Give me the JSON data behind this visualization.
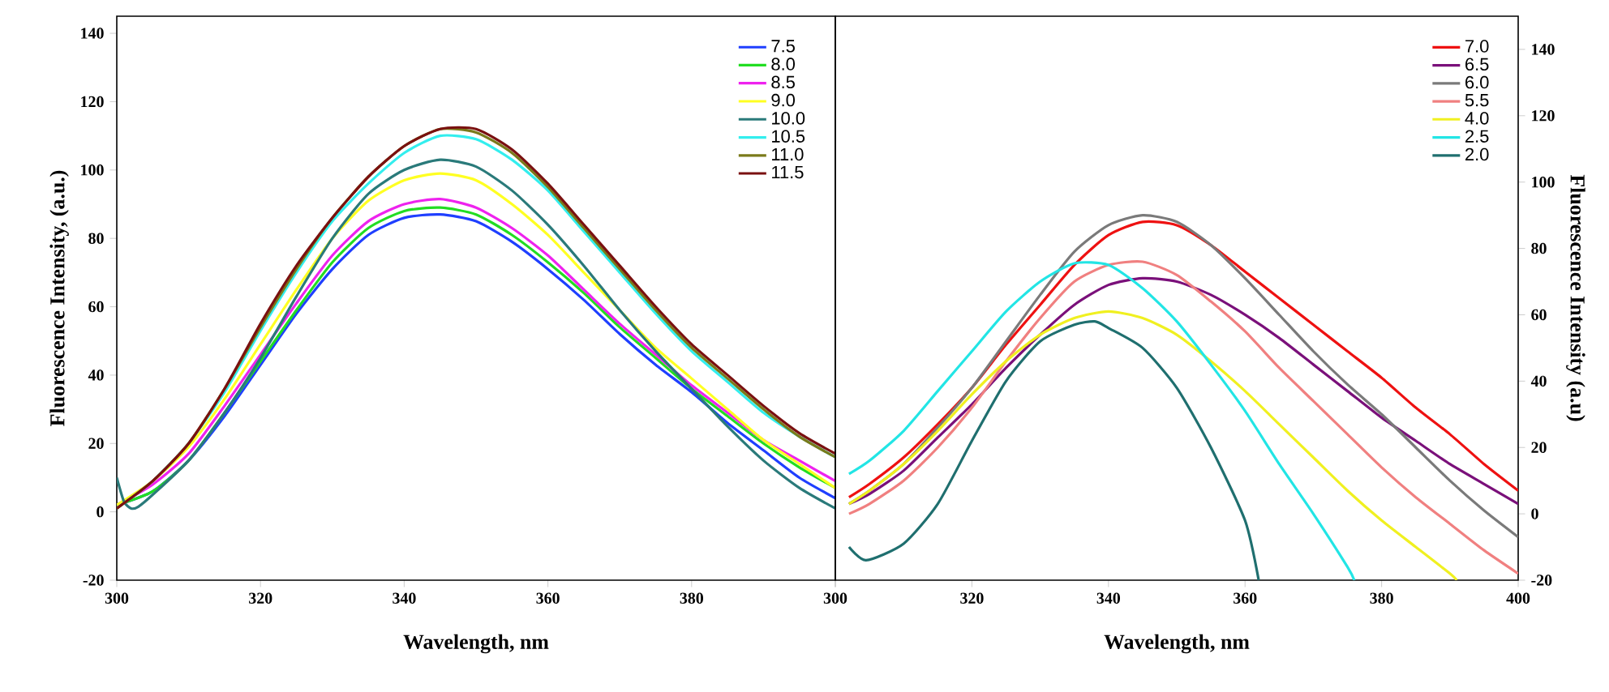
{
  "chart_data": [
    {
      "type": "line",
      "xlabel": "Wavelength, nm",
      "ylabel": "Fluorescence Intensity, (a.u.)",
      "xlim": [
        300,
        400
      ],
      "ylim": [
        -20,
        145
      ],
      "xticks": [
        300,
        320,
        340,
        360,
        380,
        {
          "value": 400,
          "label": null
        }
      ],
      "yticks": [
        -20,
        0,
        20,
        40,
        60,
        80,
        100,
        120,
        140
      ],
      "legend": "top right",
      "x": [
        300,
        305,
        310,
        315,
        320,
        325,
        330,
        335,
        340,
        345,
        350,
        355,
        360,
        365,
        370,
        375,
        380,
        385,
        390,
        395,
        400
      ],
      "series": [
        {
          "name": "7.5",
          "color": "#1f3fff",
          "values": [
            2,
            6,
            15,
            28,
            43,
            58,
            71,
            81,
            86,
            87,
            85,
            79,
            71,
            62,
            52,
            43,
            35,
            26,
            18,
            10,
            4
          ]
        },
        {
          "name": "8.0",
          "color": "#22dd22",
          "values": [
            2,
            6,
            15,
            29,
            44,
            59,
            73,
            83,
            88,
            89,
            87,
            81,
            73,
            64,
            54,
            45,
            36,
            28,
            20,
            13,
            7
          ]
        },
        {
          "name": "8.5",
          "color": "#ee22ee",
          "values": [
            2,
            8,
            17,
            31,
            46,
            61,
            75,
            85,
            90,
            91.5,
            89,
            83,
            75,
            65,
            55,
            46,
            37,
            29,
            21,
            15,
            9
          ]
        },
        {
          "name": "9.0",
          "color": "#ffff22",
          "values": [
            2,
            9,
            19,
            33,
            49,
            65,
            80,
            91,
            97,
            99,
            97,
            90,
            81,
            70,
            59,
            48,
            39,
            30,
            21,
            14,
            7
          ]
        },
        {
          "name": "10.0",
          "color": "#2a7a7a",
          "x": [
            300,
            301,
            302,
            303,
            305,
            310,
            315,
            320,
            325,
            330,
            335,
            340,
            345,
            350,
            355,
            360,
            365,
            370,
            375,
            380,
            385,
            390,
            395,
            400
          ],
          "values": [
            10,
            3,
            1,
            1.5,
            5,
            15,
            29,
            45,
            63,
            80,
            93,
            100,
            103,
            101,
            94,
            84,
            72,
            59,
            47,
            36,
            25,
            15,
            7,
            1
          ]
        },
        {
          "name": "10.5",
          "color": "#33eeee",
          "values": [
            1,
            9,
            20,
            35,
            53,
            70,
            85,
            96,
            105,
            110,
            109,
            103,
            94,
            82,
            70,
            58,
            47,
            38,
            29,
            22,
            16
          ]
        },
        {
          "name": "11.0",
          "color": "#7a7a1a",
          "values": [
            1,
            9,
            20,
            36,
            54,
            71,
            86,
            98,
            107,
            112,
            111,
            105,
            95,
            83,
            71,
            59,
            48,
            39,
            30,
            22,
            16
          ]
        },
        {
          "name": "11.5",
          "color": "#7a1010",
          "values": [
            1,
            9,
            20,
            36,
            55,
            72,
            86,
            98,
            107,
            112,
            112,
            106,
            96,
            84,
            72,
            60,
            49,
            40,
            31,
            23,
            17
          ]
        }
      ]
    },
    {
      "type": "line",
      "xlabel": "Wavelength, nm",
      "y2label": "Fluorescence Intensity (a.u)",
      "xlim": [
        300,
        400
      ],
      "y2lim": [
        -20,
        150
      ],
      "xticks": [
        300,
        320,
        340,
        360,
        380,
        400
      ],
      "y2ticks": [
        -20,
        0,
        20,
        40,
        60,
        80,
        100,
        120,
        140
      ],
      "legend": "top right",
      "x": [
        302,
        305,
        310,
        315,
        320,
        325,
        330,
        335,
        340,
        345,
        350,
        355,
        360,
        365,
        370,
        375,
        380,
        385,
        390,
        395,
        400
      ],
      "series": [
        {
          "name": "7.0",
          "color": "#ee1111",
          "axis": "y2",
          "values": [
            5,
            9,
            17,
            27,
            38,
            51,
            63,
            75,
            84,
            88,
            87,
            81,
            73,
            65,
            57,
            49,
            41,
            32,
            24,
            15,
            7
          ]
        },
        {
          "name": "6.5",
          "color": "#7a107a",
          "axis": "y2",
          "values": [
            3,
            6,
            13,
            23,
            33,
            44,
            54,
            63,
            69,
            71,
            70,
            66,
            60,
            53,
            45,
            37,
            29,
            22,
            15,
            9,
            3
          ]
        },
        {
          "name": "6.0",
          "color": "#7a7a7a",
          "axis": "y2",
          "values": [
            3,
            7,
            15,
            26,
            38,
            52,
            66,
            79,
            87,
            90,
            88,
            81,
            71,
            60,
            49,
            39,
            30,
            20,
            10,
            1,
            -7
          ]
        },
        {
          "name": "5.5",
          "color": "#f08080",
          "axis": "y2",
          "values": [
            0,
            3,
            10,
            20,
            32,
            46,
            59,
            70,
            75,
            76,
            72,
            64,
            55,
            44,
            34,
            24,
            14,
            5,
            -3,
            -11,
            -18
          ]
        },
        {
          "name": "4.0",
          "color": "#f0f020",
          "axis": "y2",
          "x": [
            302,
            305,
            310,
            315,
            320,
            325,
            330,
            335,
            340,
            345,
            350,
            355,
            360,
            365,
            370,
            375,
            380,
            385,
            390,
            391
          ],
          "values": [
            3,
            7,
            15,
            25,
            36,
            46,
            54,
            59,
            61,
            59,
            54,
            46,
            37,
            27,
            17,
            7,
            -2,
            -10,
            -18,
            -20
          ]
        },
        {
          "name": "2.5",
          "color": "#22e5e5",
          "axis": "y2",
          "x": [
            302,
            305,
            310,
            315,
            320,
            325,
            330,
            335,
            340,
            345,
            350,
            355,
            360,
            365,
            370,
            375,
            376
          ],
          "values": [
            12,
            16,
            25,
            37,
            49,
            61,
            70,
            75.5,
            75,
            68,
            58,
            45,
            31,
            15,
            0,
            -16,
            -20
          ]
        },
        {
          "name": "2.0",
          "color": "#1f6f6f",
          "axis": "y2",
          "x": [
            302,
            304.5,
            310,
            315,
            320,
            325,
            330,
            335,
            338,
            340,
            345,
            350,
            355,
            360,
            362
          ],
          "values": [
            -10,
            -14,
            -9,
            3,
            22,
            40,
            52,
            57,
            58,
            56,
            50,
            38,
            20,
            -2,
            -20
          ]
        }
      ]
    }
  ]
}
